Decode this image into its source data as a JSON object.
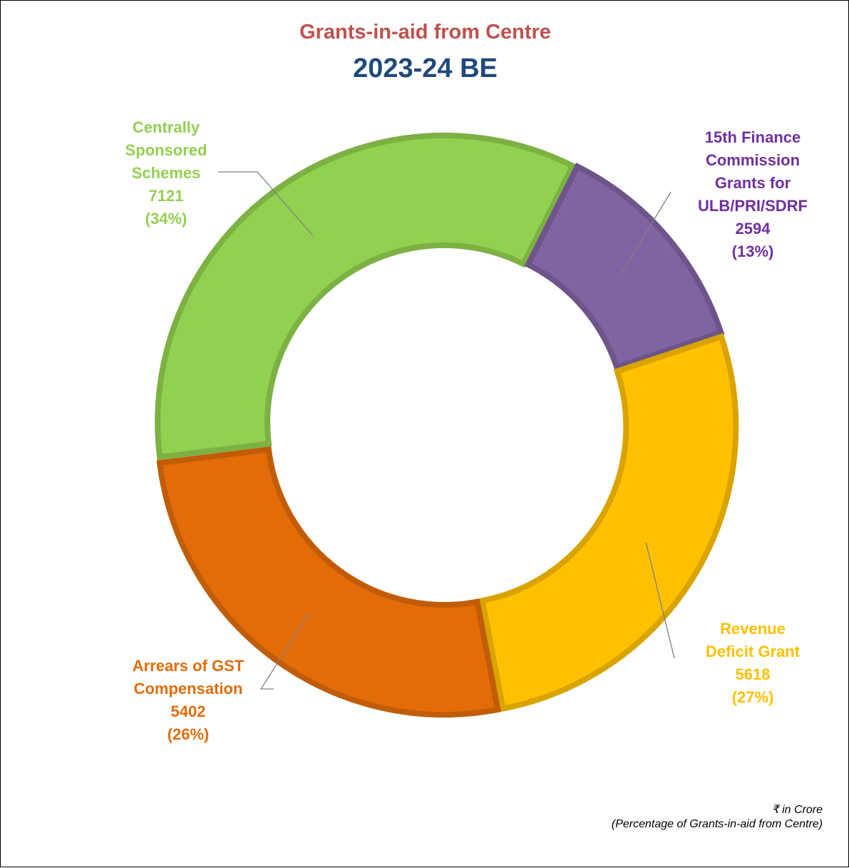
{
  "chart_data": {
    "type": "donut",
    "title": "Grants-in-aid from Centre",
    "subtitle": "2023-24 BE",
    "categories": [
      "Centrally Sponsored Schemes",
      "15th Finance Commission Grants for ULB/PRI/SDRF",
      "Revenue Deficit Grant",
      "Arrears of GST Compensation"
    ],
    "values": [
      7121,
      2594,
      5618,
      5402
    ],
    "percent_labels": [
      "(34%)",
      "(13%)",
      "(27%)",
      "(26%)"
    ],
    "colors": [
      "#92d050",
      "#8064a2",
      "#ffc000",
      "#e36c09"
    ],
    "label_colors": [
      "#92d050",
      "#7030a0",
      "#ffc000",
      "#e36c09"
    ],
    "notes": [
      "₹ in Crore",
      "(Percentage of Grants-in-aid from Centre)"
    ]
  }
}
